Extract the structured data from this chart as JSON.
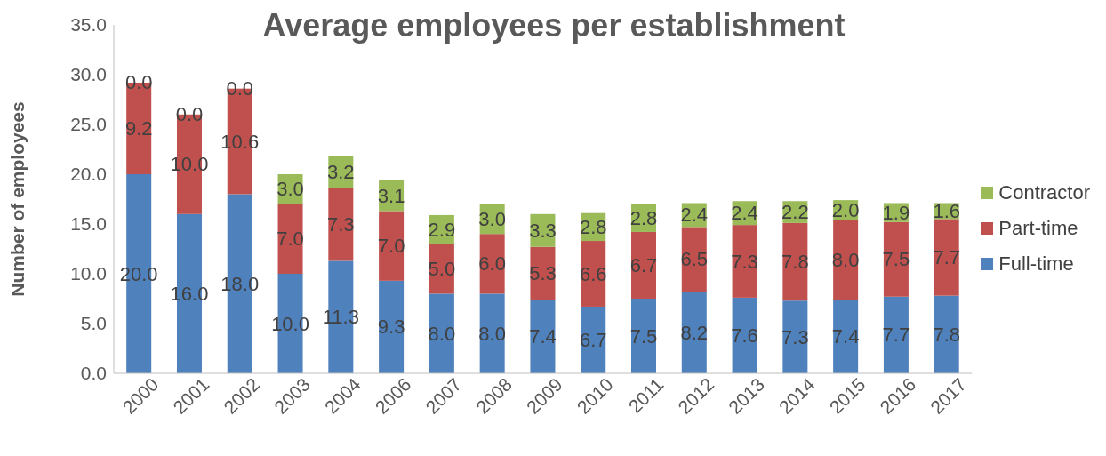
{
  "chart_data": {
    "type": "bar",
    "stacked": true,
    "title": "Average employees per establishment",
    "ylabel": "Number of employees",
    "categories": [
      "2000",
      "2001",
      "2002",
      "2003",
      "2004",
      "2006",
      "2007",
      "2008",
      "2009",
      "2010",
      "2011",
      "2012",
      "2013",
      "2014",
      "2015",
      "2016",
      "2017"
    ],
    "series": [
      {
        "name": "Full-time",
        "color": "#4f81bd",
        "values": [
          20.0,
          16.0,
          18.0,
          10.0,
          11.3,
          9.3,
          8.0,
          8.0,
          7.4,
          6.7,
          7.5,
          8.2,
          7.6,
          7.3,
          7.4,
          7.7,
          7.8
        ],
        "value_labels": [
          "20.0",
          "16.0",
          "18.0",
          "10.0",
          "11.3",
          "9.3",
          "8.0",
          "8.0",
          "7.4",
          "6.7",
          "7.5",
          "8.2",
          "7.6",
          "7.3",
          "7.4",
          "7.7",
          "7.8"
        ]
      },
      {
        "name": "Part-time",
        "color": "#c0504d",
        "values": [
          9.2,
          10.0,
          10.6,
          7.0,
          7.3,
          7.0,
          5.0,
          6.0,
          5.3,
          6.6,
          6.7,
          6.5,
          7.3,
          7.8,
          8.0,
          7.5,
          7.7
        ],
        "value_labels": [
          "9.2",
          "10.0",
          "10.6",
          "7.0",
          "7.3",
          "7.0",
          "5.0",
          "6.0",
          "5.3",
          "6.6",
          "6.7",
          "6.5",
          "7.3",
          "7.8",
          "8.0",
          "7.5",
          "7.7"
        ]
      },
      {
        "name": "Contractor",
        "color": "#9bbb59",
        "values": [
          0.0,
          0.0,
          0.0,
          3.0,
          3.2,
          3.1,
          2.9,
          3.0,
          3.3,
          2.8,
          2.8,
          2.4,
          2.4,
          2.2,
          2.0,
          1.9,
          1.6
        ],
        "value_labels": [
          "0.0",
          "0.0",
          "0.0",
          "3.0",
          "3.2",
          "3.1",
          "2.9",
          "3.0",
          "3.3",
          "2.8",
          "2.8",
          "2.4",
          "2.4",
          "2.2",
          "2.0",
          "1.9",
          "1.6"
        ]
      }
    ],
    "ylim": [
      0,
      35
    ],
    "yticks": [
      {
        "value": 0,
        "label": "0.0"
      },
      {
        "value": 5,
        "label": "5.0"
      },
      {
        "value": 10,
        "label": "10.0"
      },
      {
        "value": 15,
        "label": "15.0"
      },
      {
        "value": 20,
        "label": "20.0"
      },
      {
        "value": 25,
        "label": "25.0"
      },
      {
        "value": 30,
        "label": "30.0"
      },
      {
        "value": 35,
        "label": "35.0"
      }
    ],
    "grid": false,
    "legend": "right"
  }
}
